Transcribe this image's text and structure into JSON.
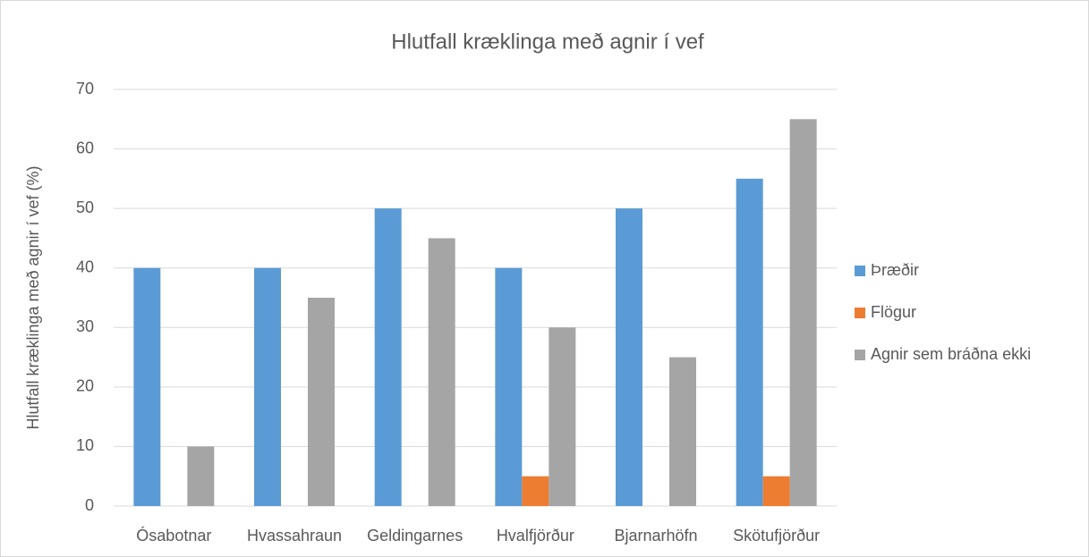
{
  "chart_data": {
    "type": "bar",
    "title": "Hlutfall kræklinga með agnir í vef",
    "y_label": "Hlutfall kræklinga með agnir í vef (%)",
    "categories": [
      "Ósabotnar",
      "Hvassahraun",
      "Geldingarnes",
      "Hvalfjörður",
      "Bjarnarhöfn",
      "Skötufjörður"
    ],
    "series": [
      {
        "name": "Þræðir",
        "color": "#5b9bd5",
        "values": [
          40,
          40,
          50,
          40,
          50,
          55
        ]
      },
      {
        "name": "Flögur",
        "color": "#ed7d31",
        "values": [
          0,
          0,
          0,
          5,
          0,
          5
        ]
      },
      {
        "name": "Agnir sem bráðna ekki",
        "color": "#a5a5a5",
        "values": [
          10,
          35,
          45,
          30,
          25,
          65
        ]
      }
    ],
    "ylim": [
      0,
      70
    ],
    "yticks": [
      0,
      10,
      20,
      30,
      40,
      50,
      60,
      70
    ],
    "grid": true,
    "legend": "right"
  }
}
